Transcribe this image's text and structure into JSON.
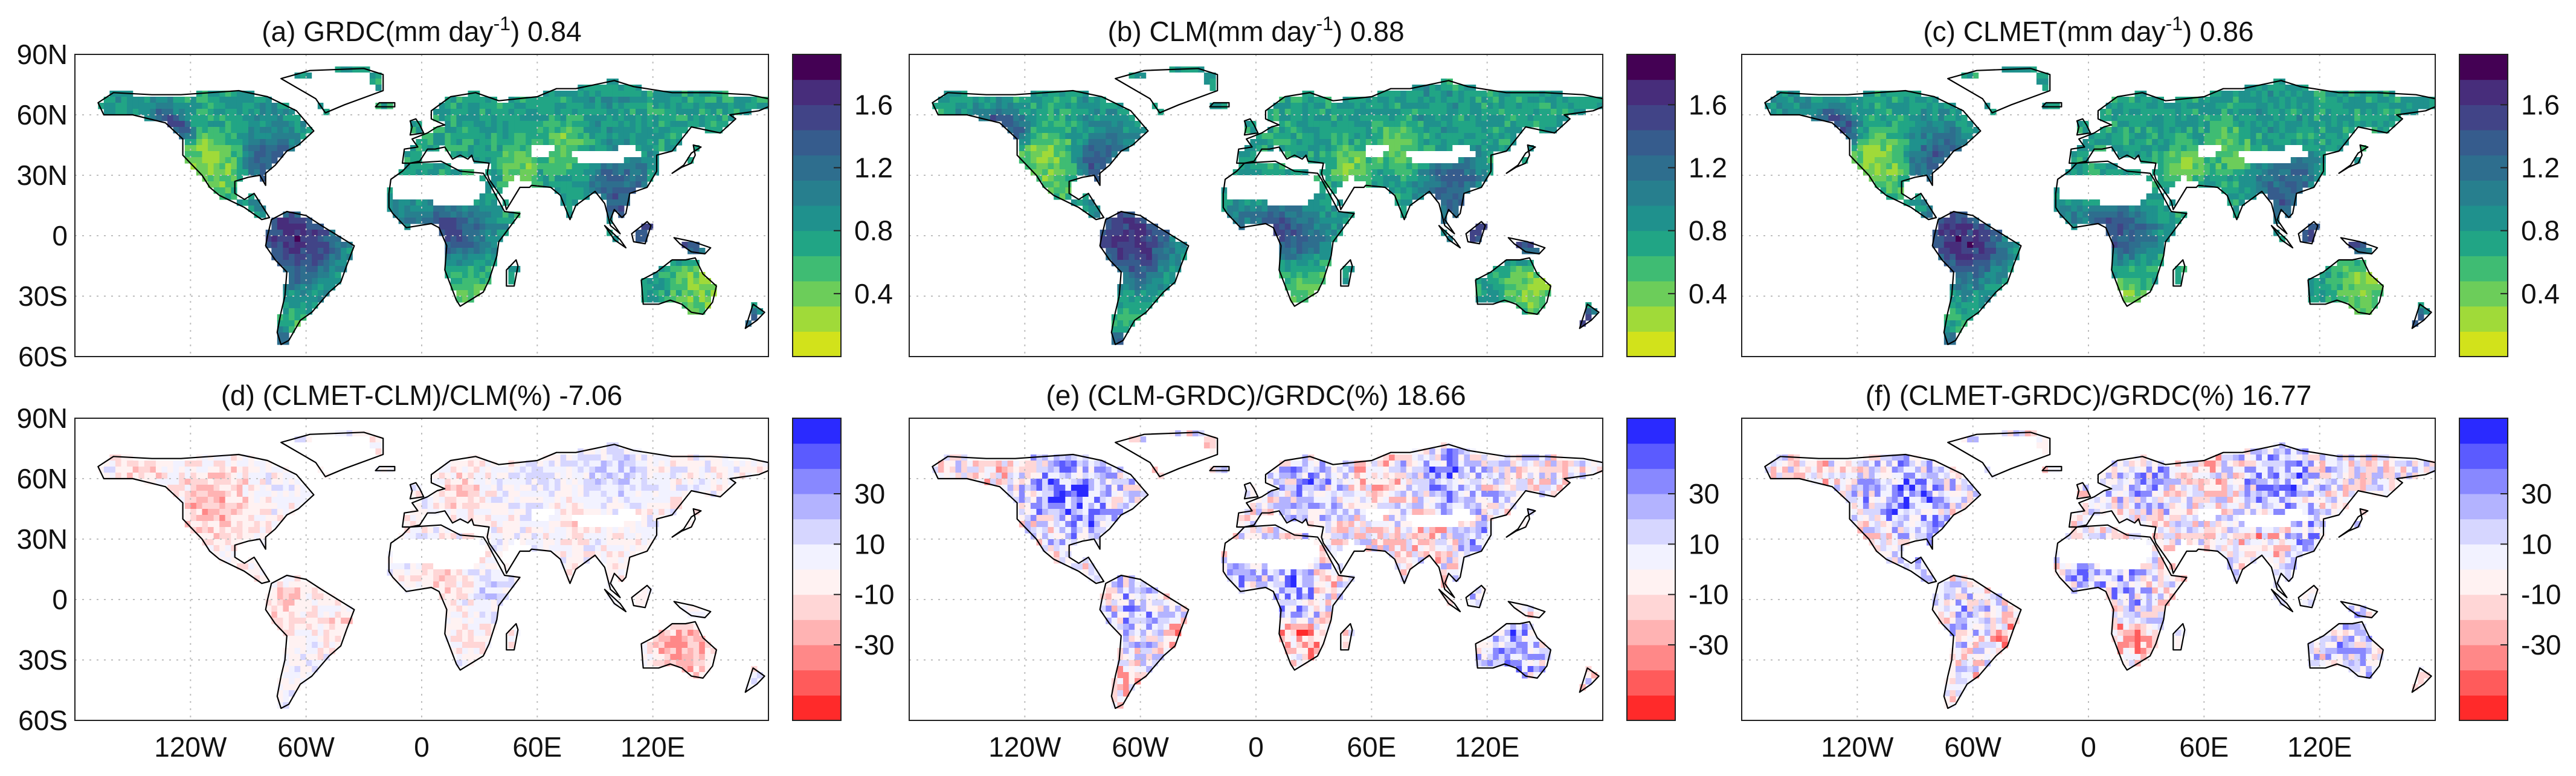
{
  "figure": {
    "panels": [
      {
        "id": "a",
        "title_main": "(a) GRDC(mm day",
        "title_sup": "-1",
        "title_suffix": ") 0.84",
        "colorbar": {
          "type": "sequential",
          "ticks": [
            "0.4",
            "0.8",
            "1.2",
            "1.6"
          ]
        }
      },
      {
        "id": "b",
        "title_main": "(b) CLM(mm day",
        "title_sup": "-1",
        "title_suffix": ") 0.88",
        "colorbar": {
          "type": "sequential",
          "ticks": [
            "0.4",
            "0.8",
            "1.2",
            "1.6"
          ]
        }
      },
      {
        "id": "c",
        "title_main": "(c) CLMET(mm day",
        "title_sup": "-1",
        "title_suffix": ") 0.86",
        "colorbar": {
          "type": "sequential",
          "ticks": [
            "0.4",
            "0.8",
            "1.2",
            "1.6"
          ]
        }
      },
      {
        "id": "d",
        "title_main": "(d) (CLMET-CLM)/CLM(%) -7.06",
        "title_sup": "",
        "title_suffix": "",
        "colorbar": {
          "type": "diverging",
          "ticks": [
            "-30",
            "-10",
            "10",
            "30"
          ]
        }
      },
      {
        "id": "e",
        "title_main": "(e) (CLM-GRDC)/GRDC(%) 18.66",
        "title_sup": "",
        "title_suffix": "",
        "colorbar": {
          "type": "diverging",
          "ticks": [
            "-30",
            "-10",
            "10",
            "30"
          ]
        }
      },
      {
        "id": "f",
        "title_main": "(f) (CLMET-GRDC)/GRDC(%) 16.77",
        "title_sup": "",
        "title_suffix": "",
        "colorbar": {
          "type": "diverging",
          "ticks": [
            "-30",
            "-10",
            "10",
            "30"
          ]
        }
      }
    ],
    "lat_ticks": [
      "90N",
      "60N",
      "30N",
      "0",
      "30S",
      "60S"
    ],
    "lat_values": [
      90,
      60,
      30,
      0,
      -30,
      -60
    ],
    "lon_ticks": [
      "120W",
      "60W",
      "0",
      "60E",
      "120E"
    ],
    "lon_values": [
      -120,
      -60,
      0,
      60,
      120
    ],
    "map_extent": {
      "lon_min": -180,
      "lon_max": 180,
      "lat_min": -60,
      "lat_max": 90
    },
    "sequential_colors": [
      "#d2e21b",
      "#a0da39",
      "#6ccd5a",
      "#3fbc73",
      "#21a585",
      "#1f918d",
      "#277f8e",
      "#2e6e8e",
      "#365c8d",
      "#414487",
      "#472d7b",
      "#440154"
    ],
    "diverging_colors": [
      "#ff2a2a",
      "#ff5b5b",
      "#ff8888",
      "#ffb3b3",
      "#ffd6d6",
      "#fff2f2",
      "#f2f2ff",
      "#d6d6ff",
      "#b3b3ff",
      "#8888ff",
      "#5b5bff",
      "#2a2aff"
    ],
    "colors": {
      "land_outline": "#000000",
      "missing": "#ffffff",
      "grid": "#bfbfbf"
    }
  }
}
